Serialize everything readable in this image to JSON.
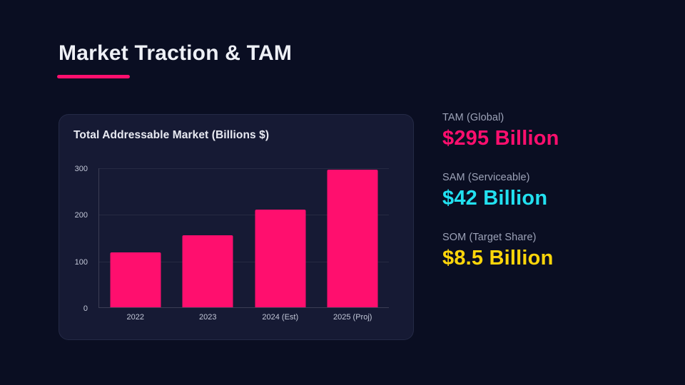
{
  "page": {
    "background_color": "#0a0e22",
    "panel_color": "#161a34"
  },
  "header": {
    "title": "Market Traction & TAM",
    "accent_color": "#ff0f6e"
  },
  "chart_card": {
    "title": "Total Addressable Market (Billions $)"
  },
  "chart_data": {
    "type": "bar",
    "title": "Total Addressable Market (Billions $)",
    "categories": [
      "2022",
      "2023",
      "2024 (Est)",
      "2025 (Proj)"
    ],
    "values": [
      118,
      155,
      210,
      295
    ],
    "bar_color": "#ff0f6e",
    "y_ticks": [
      0,
      100,
      200,
      300
    ],
    "ylim": [
      0,
      300
    ],
    "grid": true,
    "legend": "none",
    "xlabel": "",
    "ylabel": ""
  },
  "stats": [
    {
      "label": "TAM (Global)",
      "value": "$295 Billion",
      "color": "#ff0f6e"
    },
    {
      "label": "SAM (Serviceable)",
      "value": "$42 Billion",
      "color": "#22e0f0"
    },
    {
      "label": "SOM (Target Share)",
      "value": "$8.5 Billion",
      "color": "#ffd60a"
    }
  ]
}
